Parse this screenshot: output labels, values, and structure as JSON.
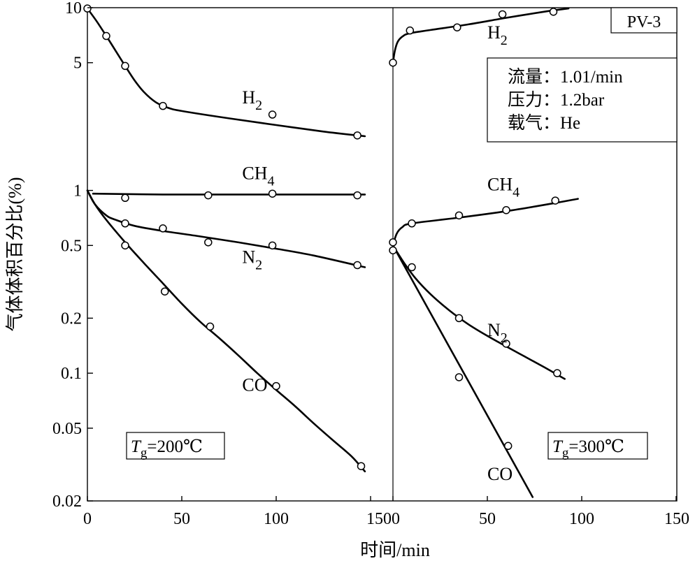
{
  "chart_data": {
    "type": "scatter",
    "y_scale": "log",
    "ylim": [
      0.02,
      10
    ],
    "ylabel": "气体体积百分比(%)",
    "xlabel": "时间/min",
    "yticks": [
      {
        "value": 10,
        "label": "10"
      },
      {
        "value": 5,
        "label": "5"
      },
      {
        "value": 1,
        "label": "1"
      },
      {
        "value": 0.5,
        "label": "0.5"
      },
      {
        "value": 0.2,
        "label": "0.2"
      },
      {
        "value": 0.1,
        "label": "0.1"
      },
      {
        "value": 0.05,
        "label": "0.05"
      },
      {
        "value": 0.02,
        "label": "0.02"
      }
    ],
    "xtick_labels": [
      "0",
      "50",
      "100",
      "1500",
      "50",
      "100",
      "150"
    ],
    "grid": false,
    "panels": [
      {
        "id": "left",
        "xlim": [
          0,
          150
        ],
        "xticks": [
          0,
          50,
          100,
          150
        ],
        "condition": {
          "symbol": "T",
          "subscript": "g",
          "value": "=200℃"
        },
        "series": [
          {
            "name": "H",
            "subscript": "2",
            "label_at": [
              82,
              3.0
            ],
            "points": [
              [
                0,
                9.9
              ],
              [
                10,
                7.0
              ],
              [
                20,
                4.8
              ],
              [
                40,
                2.9
              ],
              [
                98,
                2.6
              ],
              [
                143,
                2.0
              ]
            ],
            "curve": [
              [
                0,
                9.9
              ],
              [
                5,
                8.4
              ],
              [
                10,
                7.0
              ],
              [
                15,
                5.8
              ],
              [
                20,
                4.8
              ],
              [
                25,
                4.0
              ],
              [
                30,
                3.45
              ],
              [
                36,
                3.05
              ],
              [
                42,
                2.85
              ],
              [
                50,
                2.72
              ],
              [
                75,
                2.48
              ],
              [
                100,
                2.28
              ],
              [
                125,
                2.1
              ],
              [
                147,
                1.98
              ]
            ]
          },
          {
            "name": "CH",
            "subscript": "4",
            "label_at": [
              82,
              1.15
            ],
            "points": [
              [
                20,
                0.91
              ],
              [
                64,
                0.94
              ],
              [
                98,
                0.96
              ],
              [
                143,
                0.94
              ]
            ],
            "curve": [
              [
                3,
                0.96
              ],
              [
                40,
                0.95
              ],
              [
                80,
                0.95
              ],
              [
                120,
                0.95
              ],
              [
                147,
                0.95
              ]
            ]
          },
          {
            "name": "N",
            "subscript": "2",
            "label_at": [
              82,
              0.4
            ],
            "points": [
              [
                20,
                0.66
              ],
              [
                40,
                0.62
              ],
              [
                64,
                0.52
              ],
              [
                98,
                0.5
              ],
              [
                143,
                0.39
              ]
            ],
            "curve": [
              [
                0,
                1.0
              ],
              [
                4,
                0.84
              ],
              [
                10,
                0.73
              ],
              [
                15,
                0.69
              ],
              [
                25,
                0.64
              ],
              [
                40,
                0.6
              ],
              [
                60,
                0.56
              ],
              [
                80,
                0.52
              ],
              [
                100,
                0.48
              ],
              [
                120,
                0.44
              ],
              [
                147,
                0.38
              ]
            ]
          },
          {
            "name": "CO",
            "subscript": "",
            "label_at": [
              82,
              0.08
            ],
            "points": [
              [
                20,
                0.5
              ],
              [
                41,
                0.28
              ],
              [
                65,
                0.18
              ],
              [
                100,
                0.085
              ],
              [
                145,
                0.031
              ]
            ],
            "curve": [
              [
                0,
                1.0
              ],
              [
                4,
                0.84
              ],
              [
                10,
                0.69
              ],
              [
                20,
                0.52
              ],
              [
                30,
                0.4
              ],
              [
                40,
                0.31
              ],
              [
                50,
                0.24
              ],
              [
                60,
                0.19
              ],
              [
                70,
                0.155
              ],
              [
                80,
                0.125
              ],
              [
                90,
                0.1
              ],
              [
                100,
                0.081
              ],
              [
                110,
                0.066
              ],
              [
                120,
                0.053
              ],
              [
                130,
                0.043
              ],
              [
                140,
                0.035
              ],
              [
                147,
                0.029
              ]
            ]
          }
        ]
      },
      {
        "id": "right",
        "xlim": [
          0,
          150
        ],
        "xticks": [
          0,
          50,
          100,
          150
        ],
        "title": "PV-3",
        "info_box": [
          "流量：1.01/min",
          "压力：1.2bar",
          "载气：He"
        ],
        "condition": {
          "symbol": "T",
          "subscript": "g",
          "value": "=300℃"
        },
        "series": [
          {
            "name": "H",
            "subscript": "2",
            "label_at": [
              50,
              6.8
            ],
            "points": [
              [
                0,
                5.0
              ],
              [
                9,
                7.5
              ],
              [
                34,
                7.8
              ],
              [
                58,
                9.2
              ],
              [
                85,
                9.5
              ]
            ],
            "curve": [
              [
                0,
                5.0
              ],
              [
                1,
                5.8
              ],
              [
                2.5,
                6.5
              ],
              [
                5,
                6.95
              ],
              [
                9,
                7.25
              ],
              [
                20,
                7.55
              ],
              [
                40,
                8.1
              ],
              [
                60,
                8.8
              ],
              [
                80,
                9.5
              ],
              [
                93,
                9.9
              ]
            ]
          },
          {
            "name": "CH",
            "subscript": "4",
            "label_at": [
              50,
              1.0
            ],
            "points": [
              [
                0,
                0.52
              ],
              [
                10,
                0.66
              ],
              [
                35,
                0.73
              ],
              [
                60,
                0.78
              ],
              [
                86,
                0.88
              ]
            ],
            "curve": [
              [
                0,
                0.5
              ],
              [
                2,
                0.58
              ],
              [
                5,
                0.63
              ],
              [
                10,
                0.66
              ],
              [
                35,
                0.71
              ],
              [
                60,
                0.77
              ],
              [
                85,
                0.85
              ],
              [
                98,
                0.9
              ]
            ]
          },
          {
            "name": "N",
            "subscript": "2",
            "label_at": [
              50,
              0.16
            ],
            "points": [
              [
                0,
                0.47
              ],
              [
                10,
                0.38
              ],
              [
                35,
                0.2
              ],
              [
                60,
                0.145
              ],
              [
                87,
                0.1
              ]
            ],
            "curve": [
              [
                0,
                0.5
              ],
              [
                6,
                0.4
              ],
              [
                12,
                0.33
              ],
              [
                20,
                0.27
              ],
              [
                30,
                0.22
              ],
              [
                40,
                0.185
              ],
              [
                50,
                0.16
              ],
              [
                60,
                0.14
              ],
              [
                70,
                0.123
              ],
              [
                80,
                0.108
              ],
              [
                91,
                0.093
              ]
            ]
          },
          {
            "name": "CO",
            "subscript": "",
            "label_at": [
              50,
              0.026
            ],
            "points": [
              [
                35,
                0.095
              ],
              [
                61,
                0.04
              ]
            ],
            "curve": [
              [
                0,
                0.5
              ],
              [
                74,
                0.021
              ]
            ]
          }
        ]
      }
    ]
  }
}
